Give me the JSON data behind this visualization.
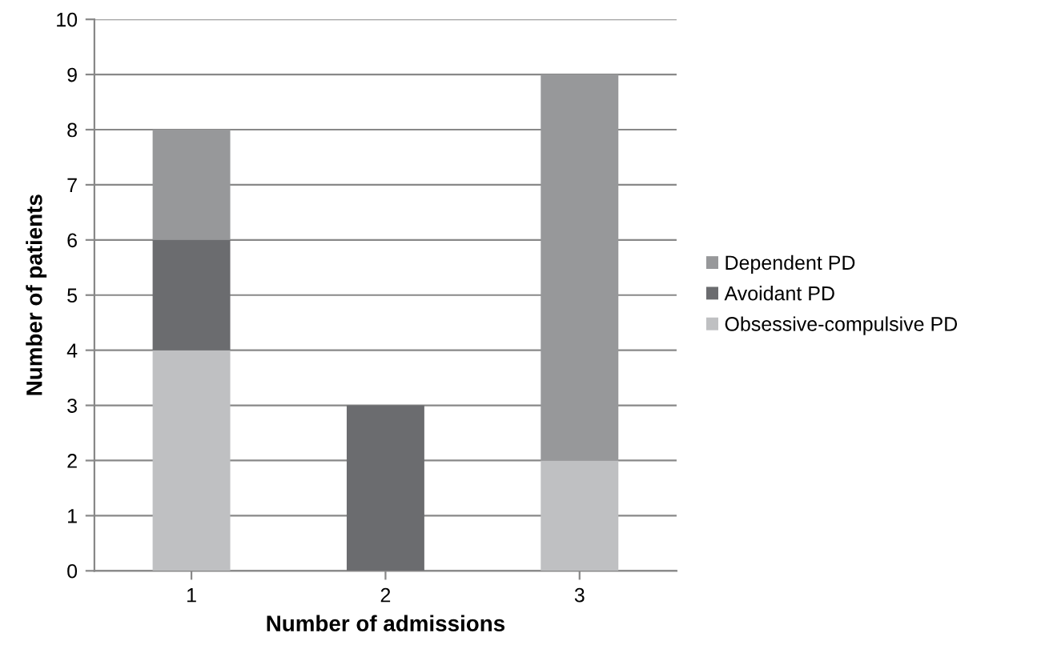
{
  "chart_data": {
    "type": "bar",
    "stacked": true,
    "xlabel": "Number of admissions",
    "ylabel": "Number of patients",
    "categories": [
      "1",
      "2",
      "3"
    ],
    "series": [
      {
        "name": "Obsessive-compulsive PD",
        "color": "#bfc0c2",
        "values": [
          4,
          0,
          2
        ]
      },
      {
        "name": "Avoidant PD",
        "color": "#6b6c6f",
        "values": [
          2,
          3,
          0
        ]
      },
      {
        "name": "Dependent PD",
        "color": "#97989a",
        "values": [
          2,
          0,
          7
        ]
      }
    ],
    "ylim": [
      0,
      10
    ],
    "yticks": [
      0,
      1,
      2,
      3,
      4,
      5,
      6,
      7,
      8,
      9,
      10
    ],
    "grid": "y",
    "legend": "right"
  }
}
